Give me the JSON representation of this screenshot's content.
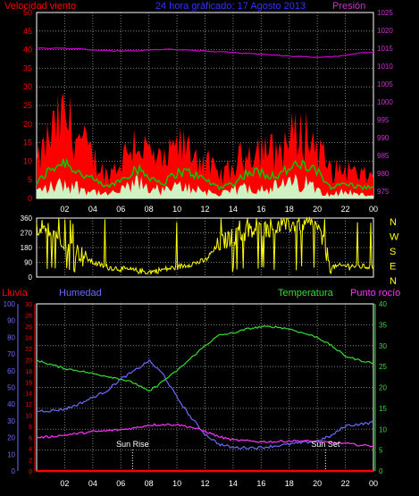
{
  "colors": {
    "background": "#000000",
    "grid": "#7f7f7f",
    "frame": "#ffffff",
    "wind_gust": "#ff0000",
    "wind_avg": "#00cc00",
    "wind_min": "#ccffcc",
    "pressure": "#cc00cc",
    "direction": "#ffff00",
    "humidity": "#6b6bff",
    "temperature": "#33dd33",
    "dewpoint": "#ff33ff",
    "rain": "#ff0000",
    "axis_left_top": "#ff0000",
    "axis_title_center": "#3333ff",
    "axis_right_top": "#cc33cc",
    "sun_markers": "#ffffff"
  },
  "header": {
    "left_title": "Velocidad viento",
    "center_title": "24 hora gráficado: 17 Agosto 2013",
    "right_title": "Presión"
  },
  "x_labels": [
    "02",
    "04",
    "06",
    "08",
    "10",
    "12",
    "14",
    "16",
    "18",
    "20",
    "22",
    "00"
  ],
  "chart_data": [
    {
      "type": "area",
      "name": "wind",
      "y_ticks": [
        0,
        5,
        10,
        15,
        20,
        25,
        30,
        35,
        40,
        45,
        50
      ],
      "ylim": [
        0,
        50
      ],
      "y2_ticks": [
        975,
        980,
        985,
        990,
        995,
        1000,
        1005,
        1010,
        1015,
        1020,
        1025
      ],
      "y2lim": [
        973,
        1025
      ],
      "x": [
        "00:00",
        "01:00",
        "02:00",
        "03:00",
        "04:00",
        "05:00",
        "06:00",
        "07:00",
        "08:00",
        "09:00",
        "10:00",
        "11:00",
        "12:00",
        "13:00",
        "14:00",
        "15:00",
        "16:00",
        "17:00",
        "18:00",
        "19:00",
        "20:00",
        "21:00",
        "22:00",
        "23:00",
        "24:00"
      ],
      "series": [
        {
          "name": "gust",
          "values": [
            9,
            17,
            22,
            16,
            11,
            6,
            10,
            16,
            12,
            9,
            14,
            13,
            10,
            6,
            8,
            13,
            14,
            12,
            16,
            18,
            14,
            7,
            8,
            6,
            6
          ]
        },
        {
          "name": "average",
          "values": [
            4,
            8,
            10,
            7,
            5,
            3,
            5,
            8,
            6,
            4,
            7,
            7,
            5,
            3,
            4,
            7,
            7,
            6,
            8,
            9,
            7,
            3,
            4,
            3,
            3
          ]
        },
        {
          "name": "minimum",
          "values": [
            2,
            3,
            4,
            3,
            2,
            1,
            2,
            4,
            3,
            2,
            3,
            3,
            2,
            1,
            2,
            3,
            3,
            3,
            4,
            4,
            3,
            1,
            2,
            1,
            1
          ]
        },
        {
          "name": "pressure",
          "values": [
            1015,
            1015,
            1015,
            1014.8,
            1014.5,
            1014.3,
            1014.2,
            1014.2,
            1014.5,
            1014.7,
            1014.6,
            1014.4,
            1014.2,
            1014.0,
            1013.8,
            1013.6,
            1013.4,
            1013.1,
            1012.8,
            1012.6,
            1012.5,
            1012.6,
            1013.0,
            1013.6,
            1014.0
          ]
        }
      ]
    },
    {
      "type": "line",
      "name": "direction",
      "y_ticks": [
        0,
        90,
        180,
        270,
        360
      ],
      "ylim": [
        0,
        360
      ],
      "right_labels": [
        "N",
        "W",
        "S",
        "E",
        "N"
      ],
      "x": [
        "00:00",
        "01:00",
        "02:00",
        "03:00",
        "04:00",
        "05:00",
        "06:00",
        "07:00",
        "08:00",
        "09:00",
        "10:00",
        "11:00",
        "12:00",
        "13:00",
        "14:00",
        "15:00",
        "16:00",
        "17:00",
        "18:00",
        "19:00",
        "20:00",
        "21:00",
        "22:00",
        "23:00",
        "24:00"
      ],
      "series": [
        {
          "name": "direction",
          "values": [
            230,
            300,
            220,
            150,
            90,
            60,
            50,
            40,
            30,
            45,
            60,
            80,
            100,
            200,
            250,
            270,
            290,
            300,
            320,
            330,
            310,
            60,
            70,
            65,
            60
          ]
        }
      ]
    },
    {
      "type": "line",
      "name": "temperature",
      "header_left": "Lluvia",
      "header_humidity": "Humedad",
      "header_temp": "Temperatura",
      "header_dew": "Punto rocío",
      "y_ticks_outer": [
        0,
        10,
        20,
        30,
        40,
        50,
        60,
        70,
        80,
        90,
        100
      ],
      "y_ticks_inner": [
        0,
        2,
        4,
        6,
        8,
        10,
        12,
        14,
        16,
        18,
        20,
        22,
        24,
        26,
        28,
        30
      ],
      "y_ticks_right": [
        0,
        5,
        10,
        15,
        20,
        25,
        30,
        35,
        40
      ],
      "ylim_outer": [
        0,
        100
      ],
      "ylim_inner": [
        0,
        30
      ],
      "ylim_right": [
        0,
        40
      ],
      "x": [
        "00:00",
        "01:00",
        "02:00",
        "03:00",
        "04:00",
        "05:00",
        "06:00",
        "07:00",
        "08:00",
        "09:00",
        "10:00",
        "11:00",
        "12:00",
        "13:00",
        "14:00",
        "15:00",
        "16:00",
        "17:00",
        "18:00",
        "19:00",
        "20:00",
        "21:00",
        "22:00",
        "23:00",
        "24:00"
      ],
      "series": [
        {
          "name": "humidity",
          "values": [
            36,
            36,
            37,
            40,
            44,
            48,
            55,
            60,
            66,
            58,
            44,
            32,
            22,
            16,
            14,
            14,
            14,
            15,
            16,
            17,
            18,
            21,
            27,
            28,
            29
          ]
        },
        {
          "name": "temperature",
          "values": [
            26.5,
            25.5,
            24.5,
            24.0,
            23.3,
            22.7,
            22.0,
            21.0,
            19.0,
            21.5,
            24.0,
            27.0,
            30.0,
            32.5,
            33.0,
            34.0,
            34.5,
            34.5,
            34.0,
            33.0,
            32.0,
            30.0,
            27.5,
            26.5,
            25.8
          ]
        },
        {
          "name": "dewpoint",
          "values": [
            8.0,
            8.2,
            8.6,
            9.0,
            9.4,
            9.6,
            9.9,
            10.3,
            11.0,
            11.1,
            11.1,
            10.5,
            9.5,
            8.2,
            7.4,
            7.2,
            7.0,
            7.0,
            7.2,
            7.2,
            7.0,
            6.8,
            6.6,
            6.2,
            6.0
          ]
        },
        {
          "name": "rain",
          "values": [
            0,
            0,
            0,
            0,
            0,
            0,
            0,
            0,
            0,
            0,
            0,
            0,
            0,
            0,
            0,
            0,
            0,
            0,
            0,
            0,
            0,
            0,
            0,
            0,
            0
          ]
        }
      ],
      "annotations": [
        {
          "label": "Sun Rise",
          "x": "06:50"
        },
        {
          "label": "Sun Set",
          "x": "20:35"
        }
      ]
    }
  ]
}
